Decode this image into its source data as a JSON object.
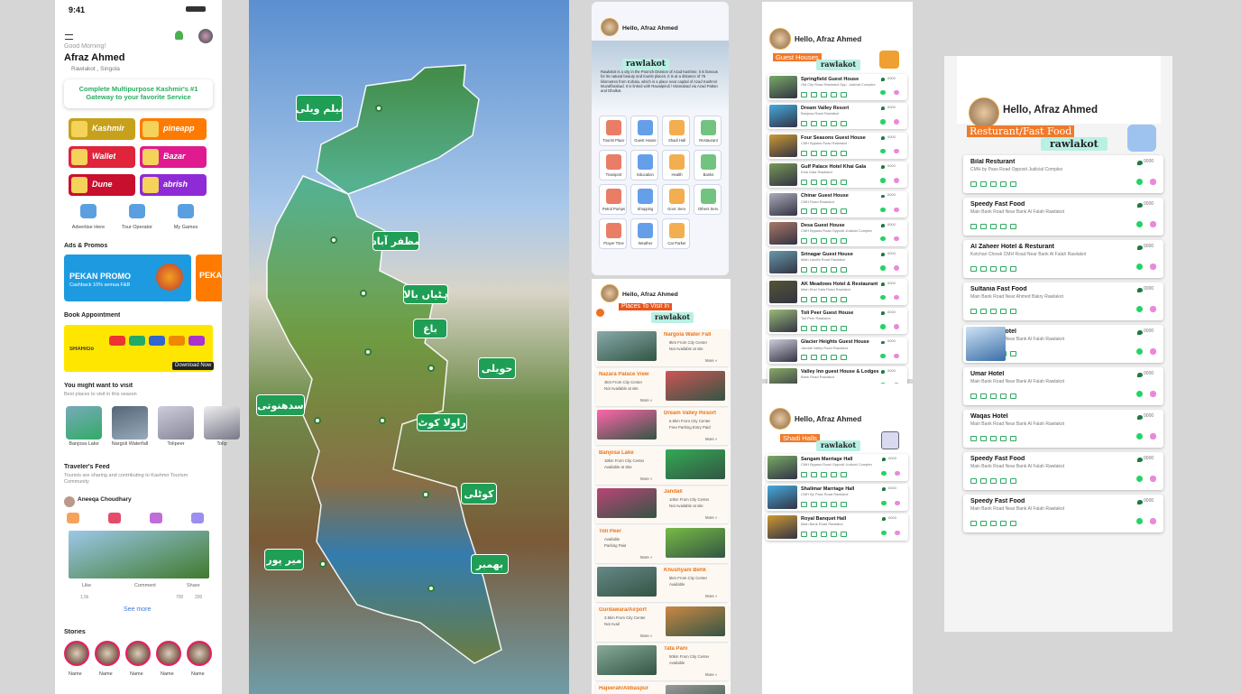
{
  "home": {
    "time": "9:41",
    "greeting": "Good Morning!",
    "name": "Afraz Ahmed",
    "location": "Rawlakot , Singola",
    "banner": "Complete Multipurpose Kashmir's #1 Gateway to your favorite Service",
    "apps": [
      "Kashmir",
      "pineapp",
      "Wallet",
      "Bazar",
      "Dune",
      "abrish"
    ],
    "services": [
      "Advertise Here",
      "Tour Operator",
      "My Games"
    ],
    "ads_title": "Ads & Promos",
    "promo_title": "PEKAN PROMO",
    "promo_sub": "Cashback 10% semua F&B",
    "promo2": "PEKA",
    "book_title": "Book Appointment",
    "book_brand": "SHAHiGo",
    "book_button": "Download Now",
    "visit_title": "You might want to visit",
    "visit_sub": "Best places to visit in this season",
    "places": [
      "Banjosa Lake",
      "Nargoli Waterfall",
      "Tolipeer",
      "Tolip"
    ],
    "feed_title": "Traveler's Feed",
    "feed_sub": "Tourists are sharing and contributing to Kashmir Tourism Community",
    "post_user": "Aneeqa Choudhary",
    "actions": [
      "Like",
      "Comment",
      "Share"
    ],
    "counts": [
      "1.5k",
      "700",
      "200"
    ],
    "see_more": "See more",
    "stories_title": "Stories",
    "stories": [
      "Name",
      "Name",
      "Name",
      "Name",
      "Name"
    ]
  },
  "map": {
    "labels": [
      "نیلم ویلی",
      "مظفر آباد",
      "ہٹیاں بالا",
      "باغ",
      "حویلی",
      "سدھنوتی",
      "راولا کوٹ",
      "کوٹلی",
      "میر پور",
      "بھمبر"
    ]
  },
  "categories_screen": {
    "greeting": "Hello, Afraz Ahmed",
    "brand": "rawlakot",
    "description": "Rawlakot is a city in the Poonch Division of Azad Kashmir, it is famous for its natural beauty and tourist places. It is at a distance of 76 kilometres from Kohala, which is a place near capital of Azad Kashmir Muzaffarabad. It is linked with Rawalpindi / Islamabad via Azad Pattan and Dhalkot.",
    "categories": [
      "Tourist Place",
      "Guest House",
      "Shadi Hall",
      "Restaurant",
      "Transport",
      "Education",
      "Health",
      "Banks",
      "Petrol Pumps",
      "Shopping",
      "Govt. Serv.",
      "Others Serv.",
      "Prayer Time",
      "Weather",
      "Car Parker"
    ]
  },
  "places_screen": {
    "greeting": "Hello, Afraz Ahmed",
    "title": "Places To Visit In",
    "brand": "rawlakot",
    "more": "More »",
    "places": [
      {
        "name": "Nargola Water Fall",
        "distance": "8km From City Center",
        "status": "Not Available at site"
      },
      {
        "name": "Nazara Palace View",
        "distance": "4km From City Center",
        "status": "Not Available at site"
      },
      {
        "name": "Dream Valley Resort",
        "distance": "6.5km From City Center",
        "status": "Free Parking Entry Paid"
      },
      {
        "name": "Banjosa Lake",
        "distance": "18km From City Center",
        "status": "Available at Site"
      },
      {
        "name": "Jandali",
        "distance": "10km From City Center",
        "status": "Not Available at site"
      },
      {
        "name": "Toli Peer",
        "distance": "Available",
        "status": "Parking Paid"
      },
      {
        "name": "Khushyani Behk",
        "distance": "5km From City Center",
        "status": "Available"
      },
      {
        "name": "Gurdawara/Airport",
        "distance": "3.5km From City Center",
        "status": "Not Avail"
      },
      {
        "name": "Tata Pani",
        "distance": "50km From City Center",
        "status": "Available"
      },
      {
        "name": "Hajeerah/Abbaspur",
        "distance": "",
        "status": ""
      }
    ]
  },
  "guest_screen": {
    "greeting": "Hello, Afraz Ahmed",
    "title": "Guest Houses",
    "brand": "rawlakot",
    "rating": "0000",
    "items": [
      {
        "name": "Springfield Guest House",
        "address": "Old City Road Rawlakot Opp. Judicial Complex"
      },
      {
        "name": "Dream Valley Resort",
        "address": "Banjosa Road Rawlakot"
      },
      {
        "name": "Four Seasons Guest House",
        "address": "CMH Bypass Road Rawlakot"
      },
      {
        "name": "Gulf Palace Hotel Khai Gala",
        "address": "Khai Gala Rawlakot"
      },
      {
        "name": "Chinar Guest House",
        "address": "CMH Road Rawlakot"
      },
      {
        "name": "Desa Guest House",
        "address": "CMH Bypass Road Opposit Judicial Complex"
      },
      {
        "name": "Srinagar Guest House",
        "address": "Main Landhi Road Rawlakot"
      },
      {
        "name": "AK Meadows Hotel & Restaurant",
        "address": "Main Khai Gala Road Rawlakot"
      },
      {
        "name": "Toli Peer Guest House",
        "address": "Toli Peer Rawlakot"
      },
      {
        "name": "Glacier Heights Guest House",
        "address": "Jandali Valley Road Rawlakot"
      },
      {
        "name": "Valley Inn guest House & Lodges",
        "address": "Bank Road Rawlakot"
      }
    ]
  },
  "halls_screen": {
    "greeting": "Hello, Afraz Ahmed",
    "title": "Shadi Halls",
    "brand": "rawlakot",
    "rating": "0000",
    "items": [
      {
        "name": "Sangam Marriage Hall",
        "address": "CMH Bypass Road Opposit Judicial Complex"
      },
      {
        "name": "Shalimar Marriage Hall",
        "address": "CMH By Pass Road Rawlakot"
      },
      {
        "name": "Royal Banquet Hall",
        "address": "Main Bank Road Rawlakot"
      }
    ]
  },
  "food_screen": {
    "greeting": "Hello, Afraz Ahmed",
    "title": "Resturant/Fast Food",
    "brand": "rawlakot",
    "rating": "0000",
    "items": [
      {
        "name": "Bilal Resturant",
        "address": "CMH by Pass Road Opposit Judicial Complex"
      },
      {
        "name": "Speedy Fast Food",
        "address": "Main Bank Road Near Bank Al Falah Rawlakot"
      },
      {
        "name": "Al Zaheer Hotel & Resturant",
        "address": "Kotchari Chowk CMH Road Near Bank Al Falah Rawlakot"
      },
      {
        "name": "Sultania Fast Food",
        "address": "Main Bank Road Near Ahmed Bakry Rawlakot"
      },
      {
        "name": "Al Marjan Hotel",
        "address": "Main Bank Road Near Bank Al Falah Rawlakot"
      },
      {
        "name": "Umar Hotel",
        "address": "Main Bank Road Near Bank Al Falah Rawlakot"
      },
      {
        "name": "Waqas Hotel",
        "address": "Main Bank Road Near Bank Al Falah Rawlakot"
      },
      {
        "name": "Speedy Fast Food",
        "address": "Main Bank Road Near Bank Al Falah Rawlakot"
      },
      {
        "name": "Speedy Fast Food",
        "address": "Main Bank Road Near Bank Al Falah Rawlakot"
      }
    ]
  }
}
